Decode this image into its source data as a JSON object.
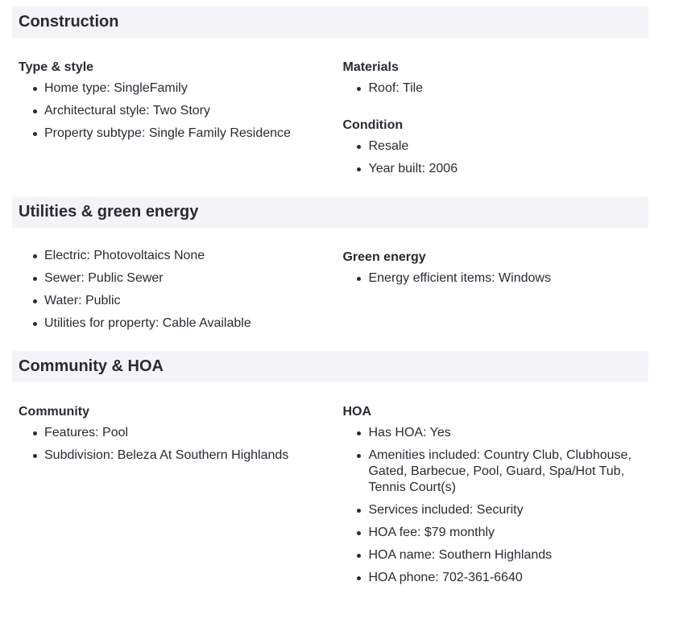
{
  "construction": {
    "title": "Construction",
    "type_style": {
      "heading": "Type & style",
      "items": [
        "Home type: SingleFamily",
        "Architectural style: Two Story",
        "Property subtype: Single Family Residence"
      ]
    },
    "materials": {
      "heading": "Materials",
      "items": [
        "Roof: Tile"
      ]
    },
    "condition": {
      "heading": "Condition",
      "items": [
        "Resale",
        "Year built: 2006"
      ]
    }
  },
  "utilities": {
    "title": "Utilities & green energy",
    "items": [
      "Electric: Photovoltaics None",
      "Sewer: Public Sewer",
      "Water: Public",
      "Utilities for property: Cable Available"
    ],
    "green_energy": {
      "heading": "Green energy",
      "items": [
        "Energy efficient items: Windows"
      ]
    }
  },
  "community": {
    "title": "Community & HOA",
    "community": {
      "heading": "Community",
      "items": [
        "Features: Pool",
        "Subdivision: Beleza At Southern Highlands"
      ]
    },
    "hoa": {
      "heading": "HOA",
      "items": [
        "Has HOA: Yes",
        "Amenities included: Country Club, Clubhouse, Gated, Barbecue, Pool, Guard, Spa/Hot Tub, Tennis Court(s)",
        "Services included: Security",
        "HOA fee: $79 monthly",
        "HOA name: Southern Highlands",
        "HOA phone: 702-361-6640"
      ]
    }
  }
}
